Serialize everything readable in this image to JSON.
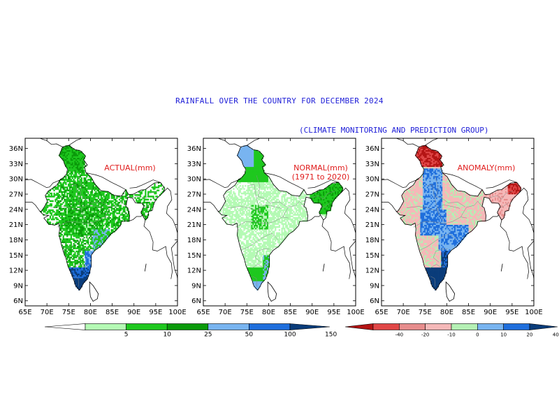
{
  "title": "RAINFALL OVER THE COUNTRY FOR DECEMBER 2024",
  "subtitle": "(CLIMATE MONITORING AND PREDICTION GROUP)",
  "lat_ticks": [
    "36N",
    "33N",
    "30N",
    "27N",
    "24N",
    "21N",
    "18N",
    "15N",
    "12N",
    "9N",
    "6N"
  ],
  "lon_ticks": [
    "65E",
    "70E",
    "75E",
    "80E",
    "85E",
    "90E",
    "95E",
    "100E"
  ],
  "panels": [
    {
      "id": "actual",
      "label_lines": [
        "ACTUAL(mm)"
      ]
    },
    {
      "id": "normal",
      "label_lines": [
        "NORMAL(mm)",
        "(1971 to 2020)"
      ]
    },
    {
      "id": "anomaly",
      "label_lines": [
        "ANOMALY(mm)"
      ]
    }
  ],
  "legend_rainfall": {
    "labels": [
      "5",
      "10",
      "25",
      "50",
      "100",
      "150"
    ],
    "colors": [
      "#ffffff",
      "#b4fab4",
      "#1ec81e",
      "#0a9a0a",
      "#78b4f0",
      "#1e6edc",
      "#0a3c7a"
    ]
  },
  "legend_anomaly": {
    "labels": [
      "-40",
      "-20",
      "-10",
      "0",
      "10",
      "20",
      "40"
    ],
    "colors": [
      "#b41414",
      "#e04646",
      "#e68c8c",
      "#f5b8b8",
      "#b4f0b4",
      "#78b4f0",
      "#1e6edc",
      "#0a3c7a"
    ]
  },
  "colors": {
    "title": "#2020d8",
    "label": "#e01c1c",
    "border": "#888888"
  }
}
